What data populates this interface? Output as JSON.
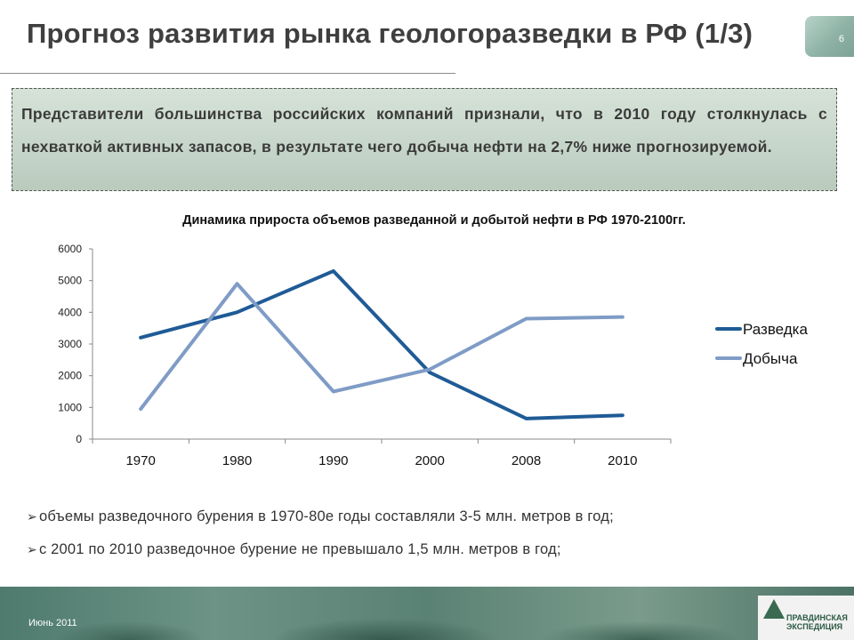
{
  "slide": {
    "title": "Прогноз развития рынка геологоразведки в РФ (1/3)",
    "page_number": "6",
    "callout": "Представители большинства российских компаний признали, что в 2010 году столкнулась с нехваткой активных запасов, в результате чего добыча нефти на 2,7% ниже прогнозируемой.",
    "bullets": [
      "объемы разведочного бурения в 1970-80е годы составляли 3-5 млн. метров в год;",
      "с 2001 по 2010 разведочное бурение не превышало 1,5 млн. метров в год;"
    ],
    "footer_date": "Июнь 2011",
    "logo_text": "ПРАВДИНСКАЯ ЭКСПЕДИЦИЯ"
  },
  "chart_data": {
    "type": "line",
    "title": "Динамика прироста объемов разведанной и добытой нефти в РФ 1970-2100гг.",
    "categories": [
      "1970",
      "1980",
      "1990",
      "2000",
      "2008",
      "2010"
    ],
    "ylim": [
      0,
      6000
    ],
    "yticks": [
      0,
      1000,
      2000,
      3000,
      4000,
      5000,
      6000
    ],
    "grid": false,
    "legend": "right",
    "series": [
      {
        "name": "Разведка",
        "color": "#1f5b96",
        "values": [
          3200,
          4000,
          5300,
          2100,
          650,
          750
        ]
      },
      {
        "name": "Добыча",
        "color": "#7f9cc6",
        "values": [
          950,
          4900,
          1500,
          2200,
          3800,
          3850
        ]
      }
    ]
  }
}
